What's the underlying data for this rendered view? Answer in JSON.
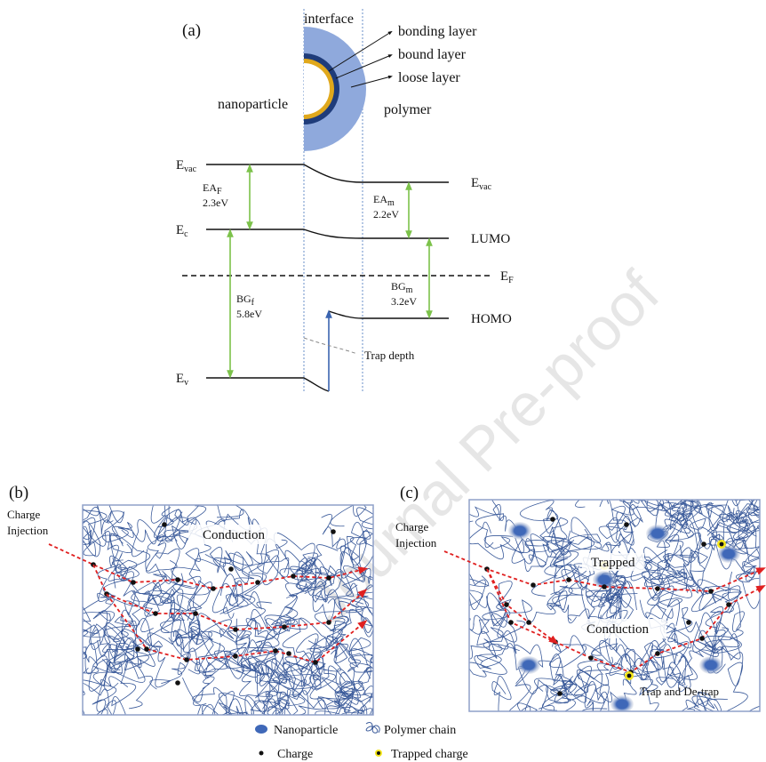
{
  "panel_a": {
    "label": "(a)",
    "interface": "interface",
    "layers": [
      "bonding layer",
      "bound layer",
      "loose layer"
    ],
    "nanoparticle": "nanoparticle",
    "polymer": "polymer",
    "levels": {
      "evac_left": {
        "main": "E",
        "sub": "vac"
      },
      "ec": {
        "main": "E",
        "sub": "c"
      },
      "ev": {
        "main": "E",
        "sub": "v"
      },
      "evac_right": {
        "main": "E",
        "sub": "vac"
      },
      "lumo": "LUMO",
      "ef": {
        "main": "E",
        "sub": "F"
      },
      "homo": "HOMO"
    },
    "gaps": {
      "ea_f": {
        "main": "EA",
        "sub": "F",
        "value": "2.3eV"
      },
      "bg_f": {
        "main": "BG",
        "sub": "f",
        "value": "5.8eV"
      },
      "ea_m": {
        "main": "EA",
        "sub": "m",
        "value": "2.2eV"
      },
      "bg_m": {
        "main": "BG",
        "sub": "m",
        "value": "3.2eV"
      }
    },
    "trap_depth": "Trap depth"
  },
  "panel_b": {
    "label": "(b)",
    "injection": [
      "Charge",
      "Injection"
    ],
    "conduction": "Conduction"
  },
  "panel_c": {
    "label": "(c)",
    "injection": [
      "Charge",
      "Injection"
    ],
    "trapped": "Trapped",
    "conduction": "Conduction",
    "trap_detrap": "Trap and De-trap"
  },
  "legend": [
    "Nanoparticle",
    "Polymer chain",
    "Charge",
    "Trapped charge"
  ],
  "watermark": "Journal Pre-proof"
}
